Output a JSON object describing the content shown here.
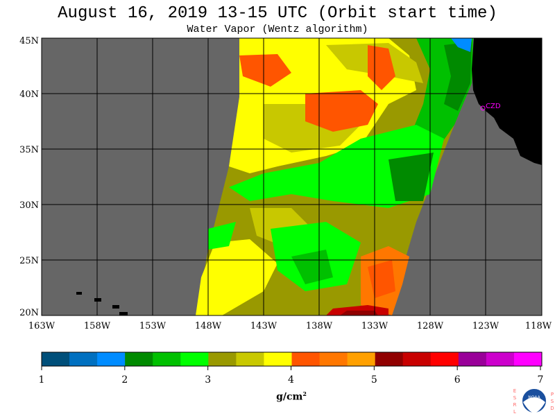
{
  "title": "August 16, 2019  13-15 UTC  (Orbit start time)",
  "subtitle": "Water Vapor (Wentz algorithm)",
  "lat_labels": [
    "45N",
    "40N",
    "35N",
    "30N",
    "25N",
    "20N"
  ],
  "lon_labels": [
    "163W",
    "158W",
    "153W",
    "148W",
    "143W",
    "138W",
    "133W",
    "128W",
    "123W",
    "118W"
  ],
  "site_label": "CZD",
  "colorbar": {
    "colors": [
      "#004f7a",
      "#0070c0",
      "#008cff",
      "#008a00",
      "#00c000",
      "#00ff00",
      "#999900",
      "#c8c800",
      "#ffff00",
      "#ff5500",
      "#ff7700",
      "#ffa000",
      "#900000",
      "#c80000",
      "#ff0000",
      "#990099",
      "#cc00cc",
      "#ff00ff"
    ],
    "tick_labels": [
      "1",
      "2",
      "3",
      "4",
      "5",
      "6",
      "7"
    ],
    "units": "g/cm",
    "units_sup": "2"
  },
  "logo": {
    "left_letters": [
      "E",
      "S",
      "R",
      "L"
    ],
    "right_letters": [
      "P",
      "S",
      "D"
    ],
    "text": "NOAA"
  }
}
